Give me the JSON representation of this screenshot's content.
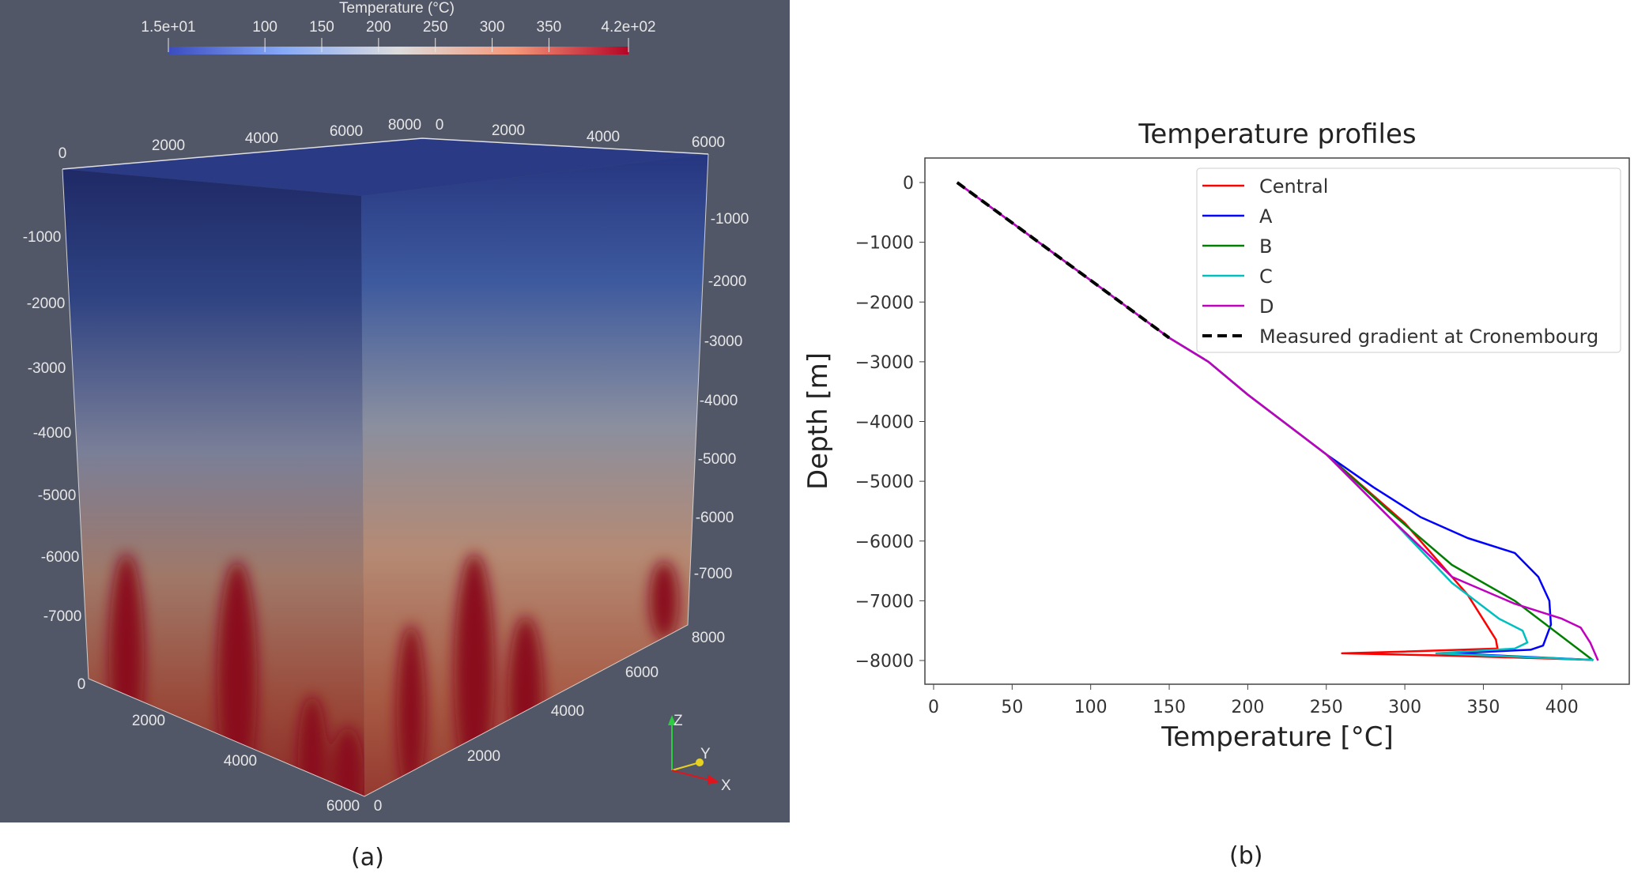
{
  "panel_a": {
    "caption": "(a)",
    "colorbar": {
      "title": "Temperature (°C)",
      "ticks": [
        "1.5e+01",
        "100",
        "150",
        "200",
        "250",
        "300",
        "350",
        "4.2e+02"
      ],
      "tick_values": [
        15,
        100,
        150,
        200,
        250,
        300,
        350,
        420
      ],
      "range": [
        15,
        420
      ],
      "colormap": "Cool to Warm",
      "colors": [
        "#3b4cc0",
        "#dddddd",
        "#b40426"
      ]
    },
    "top_axis_left": [
      "0",
      "2000",
      "4000",
      "6000",
      "8000"
    ],
    "top_axis_right": [
      "0",
      "2000",
      "4000",
      "6000"
    ],
    "left_depth_axis": [
      "-1000",
      "-2000",
      "-3000",
      "-4000",
      "-5000",
      "-6000",
      "-7000",
      "0"
    ],
    "right_depth_axis": [
      "-1000",
      "-2000",
      "-3000",
      "-4000",
      "-5000",
      "-6000",
      "-7000",
      "8000"
    ],
    "bottom_axis_left": [
      "2000",
      "4000",
      "6000"
    ],
    "bottom_axis_right": [
      "0",
      "2000",
      "4000",
      "6000"
    ],
    "orientation_axes": {
      "z": "Z",
      "y": "Y",
      "x": "X"
    },
    "background_color": "#525768"
  },
  "panel_b": {
    "caption": "(b)",
    "chart_data": {
      "type": "line",
      "title": "Temperature profiles",
      "xlabel": "Temperature [°C]",
      "ylabel": "Depth [m]",
      "xlim": [
        -5,
        425
      ],
      "ylim": [
        -8700,
        400
      ],
      "xticks": [
        0,
        50,
        100,
        150,
        200,
        250,
        300,
        350,
        400
      ],
      "yticks": [
        0,
        -1000,
        -2000,
        -3000,
        -4000,
        -5000,
        -6000,
        -7000,
        -8000
      ],
      "xtick_labels": [
        "0",
        "50",
        "100",
        "150",
        "200",
        "250",
        "300",
        "350",
        "400"
      ],
      "ytick_labels": [
        "0",
        "−1000",
        "−2000",
        "−3000",
        "−4000",
        "−5000",
        "−6000",
        "−7000",
        "−8000"
      ],
      "grid": false,
      "legend_position": "top-right",
      "series": [
        {
          "name": "Central",
          "color": "#ff0000",
          "dash": false,
          "points": [
            [
              15,
              0
            ],
            [
              150,
              -2600
            ],
            [
              175,
              -3000
            ],
            [
              200,
              -3550
            ],
            [
              250,
              -4550
            ],
            [
              300,
              -5700
            ],
            [
              340,
              -6900
            ],
            [
              352,
              -7400
            ],
            [
              358,
              -7650
            ],
            [
              359,
              -7800
            ],
            [
              300,
              -7850
            ],
            [
              260,
              -7880
            ],
            [
              330,
              -7920
            ],
            [
              420,
              -7990
            ]
          ]
        },
        {
          "name": "A",
          "color": "#0000ff",
          "dash": false,
          "points": [
            [
              15,
              0
            ],
            [
              150,
              -2600
            ],
            [
              175,
              -3000
            ],
            [
              200,
              -3550
            ],
            [
              250,
              -4550
            ],
            [
              280,
              -5100
            ],
            [
              310,
              -5600
            ],
            [
              340,
              -5950
            ],
            [
              370,
              -6200
            ],
            [
              385,
              -6600
            ],
            [
              392,
              -7000
            ],
            [
              393,
              -7400
            ],
            [
              388,
              -7750
            ],
            [
              380,
              -7820
            ],
            [
              330,
              -7880
            ],
            [
              420,
              -7990
            ]
          ]
        },
        {
          "name": "B",
          "color": "#008000",
          "dash": false,
          "points": [
            [
              15,
              0
            ],
            [
              150,
              -2600
            ],
            [
              175,
              -3000
            ],
            [
              200,
              -3550
            ],
            [
              250,
              -4550
            ],
            [
              290,
              -5500
            ],
            [
              330,
              -6400
            ],
            [
              370,
              -7000
            ],
            [
              420,
              -8000
            ]
          ]
        },
        {
          "name": "C",
          "color": "#00bfbf",
          "dash": false,
          "points": [
            [
              15,
              0
            ],
            [
              150,
              -2600
            ],
            [
              175,
              -3000
            ],
            [
              200,
              -3550
            ],
            [
              250,
              -4550
            ],
            [
              290,
              -5600
            ],
            [
              330,
              -6700
            ],
            [
              360,
              -7300
            ],
            [
              375,
              -7500
            ],
            [
              378,
              -7700
            ],
            [
              370,
              -7800
            ],
            [
              320,
              -7880
            ],
            [
              420,
              -7990
            ]
          ]
        },
        {
          "name": "D",
          "color": "#bf00bf",
          "dash": false,
          "points": [
            [
              15,
              0
            ],
            [
              150,
              -2600
            ],
            [
              175,
              -3000
            ],
            [
              200,
              -3550
            ],
            [
              250,
              -4550
            ],
            [
              290,
              -5600
            ],
            [
              330,
              -6600
            ],
            [
              370,
              -7050
            ],
            [
              400,
              -7300
            ],
            [
              412,
              -7450
            ],
            [
              418,
              -7700
            ],
            [
              423,
              -8000
            ]
          ]
        },
        {
          "name": "Measured gradient at Cronembourg",
          "color": "#000000",
          "dash": true,
          "points": [
            [
              15,
              0
            ],
            [
              150,
              -2600
            ]
          ]
        }
      ]
    }
  }
}
